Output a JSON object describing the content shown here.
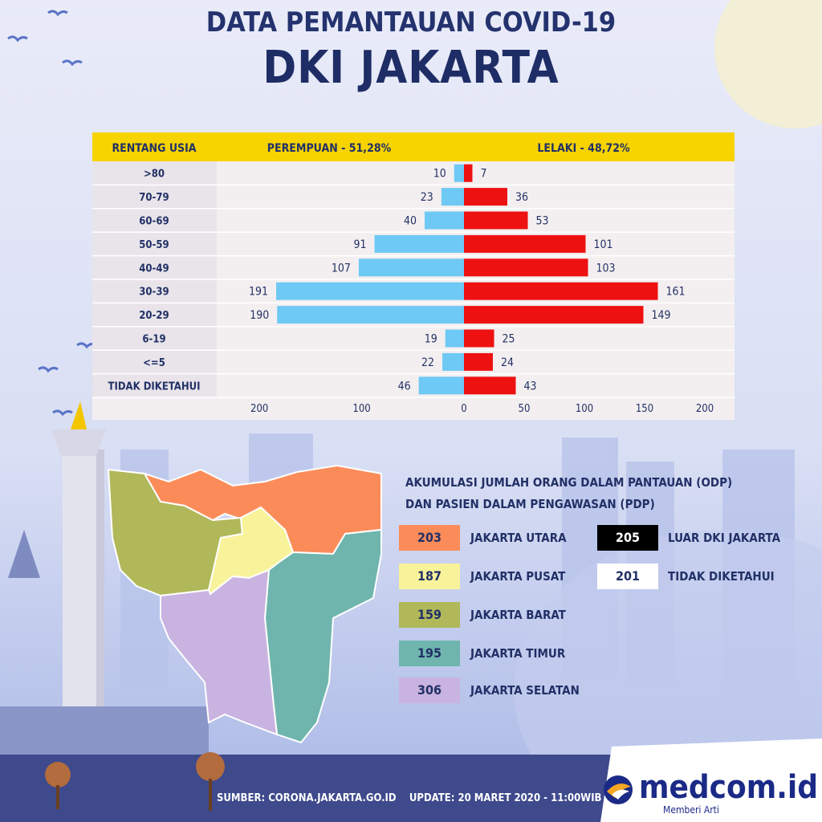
{
  "header": {
    "line1": "DATA PEMANTAUAN COVID-19",
    "line2": "DKI JAKARTA"
  },
  "chart_data": {
    "type": "bar",
    "orientation": "horizontal-pyramid",
    "category_header": "RENTANG USIA",
    "categories": [
      ">80",
      "70-79",
      "60-69",
      "50-59",
      "40-49",
      "30-39",
      "20-29",
      "6-19",
      "<=5",
      "TIDAK DIKETAHUI"
    ],
    "series": [
      {
        "name": "PEREMPUAN - 51,28%",
        "color": "#6ec9f5",
        "values": [
          10,
          23,
          40,
          91,
          107,
          191,
          190,
          19,
          22,
          46
        ]
      },
      {
        "name": "LELAKI - 48,72%",
        "color": "#ee1111",
        "values": [
          7,
          36,
          53,
          101,
          103,
          161,
          149,
          25,
          24,
          43
        ]
      }
    ],
    "left_axis_ticks": [
      200,
      100,
      0
    ],
    "right_axis_ticks": [
      50,
      100,
      150,
      200
    ],
    "left_max": 200,
    "right_max": 200
  },
  "legend": {
    "title_line1": "AKUMULASI JUMLAH ORANG DALAM PANTAUAN (ODP)",
    "title_line2": "DAN PASIEN DALAM PENGAWASAN (PDP)",
    "regions": [
      {
        "value": "203",
        "label": "JAKARTA UTARA",
        "color": "#fb8c5a"
      },
      {
        "value": "187",
        "label": "JAKARTA PUSAT",
        "color": "#f8f39a"
      },
      {
        "value": "159",
        "label": "JAKARTA BARAT",
        "color": "#b0b85a"
      },
      {
        "value": "195",
        "label": "JAKARTA TIMUR",
        "color": "#6fb5ae"
      },
      {
        "value": "306",
        "label": "JAKARTA SELATAN",
        "color": "#c9b3e0"
      }
    ],
    "others": [
      {
        "value": "205",
        "label": "LUAR DKI JAKARTA",
        "color": "#000000"
      },
      {
        "value": "201",
        "label": "TIDAK DIKETAHUI",
        "color": "#ffffff"
      }
    ]
  },
  "footer": {
    "source": "SUMBER: CORONA.JAKARTA.GO.ID",
    "update": "UPDATE: 20 MARET 2020 - 11:00WIB",
    "brand": "medcom.id",
    "tagline": "Memberi Arti"
  }
}
